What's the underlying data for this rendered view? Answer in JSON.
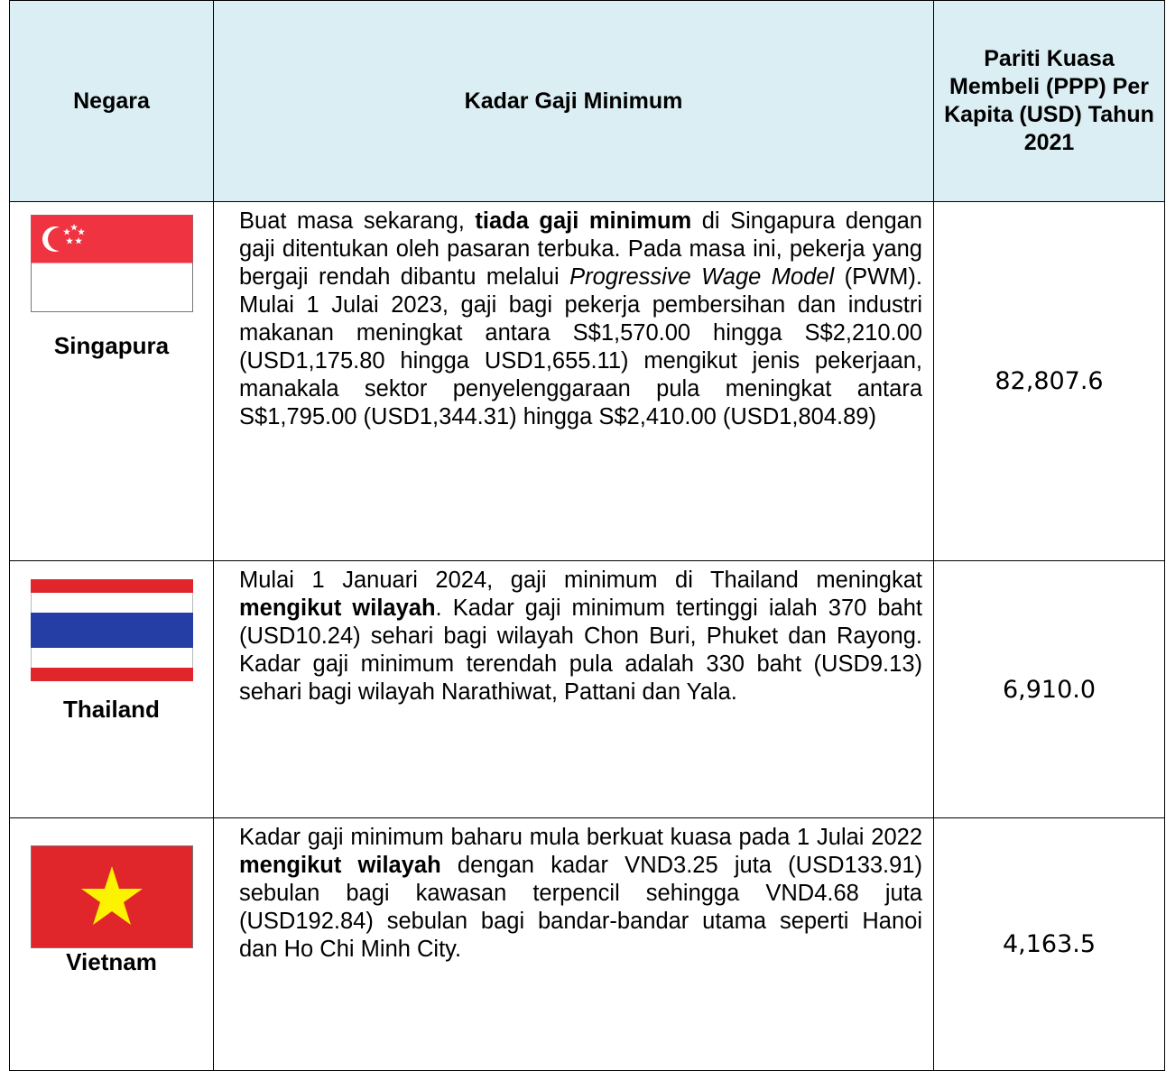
{
  "table": {
    "header": [
      "Negara",
      "Kadar Gaji Minimum",
      "Pariti Kuasa Membeli (PPP) Per Kapita (USD) Tahun 2021"
    ],
    "rows": [
      {
        "country": "Singapura",
        "description": [
          {
            "text": "Buat masa sekarang, "
          },
          {
            "text": "tiada gaji minimum",
            "bold": true
          },
          {
            "text": " di Singapura dengan gaji ditentukan oleh pasaran terbuka. Pada masa ini, pekerja yang bergaji rendah dibantu melalui "
          },
          {
            "text": "Progressive Wage Model",
            "italic": true
          },
          {
            "text": " (PWM). Mulai 1 Julai 2023, gaji bagi pekerja pembersihan dan industri makanan meningkat antara S$1,570.00 hingga S$2,210.00 (USD1,175.80 hingga USD1,655.11) mengikut jenis pekerjaan, manakala sektor penyelenggaraan pula meningkat antara S$1,795.00 (USD1,344.31) hingga S$2,410.00 (USD1,804.89)"
          }
        ],
        "ppp": "82,807.6"
      },
      {
        "country": "Thailand",
        "description": [
          {
            "text": "Mulai 1 Januari 2024, gaji minimum di Thailand meningkat "
          },
          {
            "text": "mengikut wilayah",
            "bold": true
          },
          {
            "text": ". Kadar gaji minimum tertinggi ialah 370 baht (USD10.24) sehari bagi wilayah Chon Buri, Phuket dan Rayong. Kadar gaji minimum terendah pula adalah 330 baht (USD9.13) sehari bagi wilayah Narathiwat, Pattani dan Yala."
          }
        ],
        "ppp": "6,910.0"
      },
      {
        "country": "Vietnam",
        "description": [
          {
            "text": "Kadar gaji minimum baharu mula berkuat kuasa pada 1 Julai 2022 "
          },
          {
            "text": "mengikut wilayah",
            "bold": true
          },
          {
            "text": " dengan kadar VND3.25 juta (USD133.91) sebulan bagi kawasan terpencil sehingga VND4.68 juta (USD192.84) sebulan bagi bandar-bandar utama seperti Hanoi dan Ho Chi Minh City."
          }
        ],
        "ppp": "4,163.5"
      }
    ]
  }
}
